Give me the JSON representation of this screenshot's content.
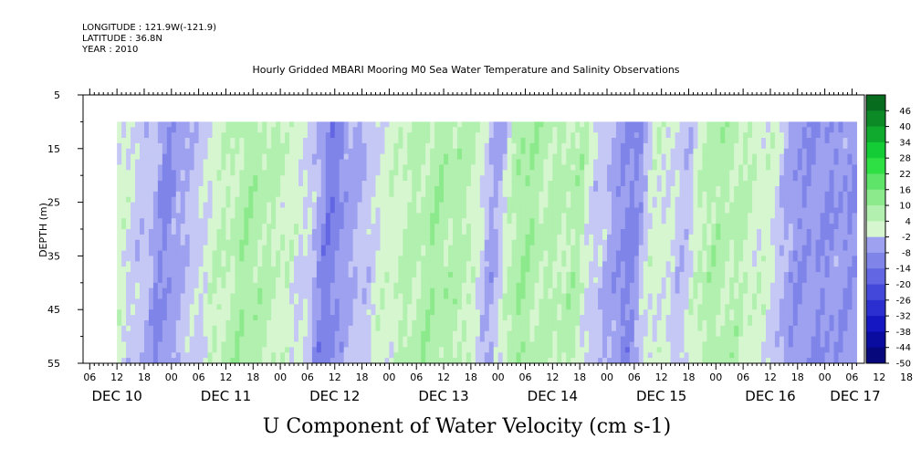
{
  "header": {
    "longitude": "LONGITUDE : 121.9W(-121.9)",
    "latitude": "LATITUDE : 36.8N",
    "year": "YEAR : 2010"
  },
  "chart_data": {
    "type": "heatmap",
    "title": "Hourly Gridded MBARI Mooring M0 Sea Water Temperature and Salinity Observations",
    "xlabel": "",
    "ylabel": "DEPTH (m)",
    "caption": "U Component of Water Velocity (cm s-1)",
    "y_ticks": [
      5,
      15,
      25,
      35,
      45,
      55
    ],
    "ylim": [
      55,
      5
    ],
    "y_axis_inverted": true,
    "data_depth_range_m": [
      10,
      55
    ],
    "hour_ticks": [
      "06",
      "12",
      "18",
      "00",
      "06",
      "12",
      "18",
      "00",
      "06",
      "12",
      "18",
      "00",
      "06",
      "12",
      "18",
      "00",
      "06",
      "12",
      "18",
      "00",
      "06",
      "12",
      "18",
      "00",
      "06",
      "12",
      "18",
      "00",
      "06",
      "12",
      "18",
      "00",
      "06"
    ],
    "date_labels": [
      "DEC 10",
      "DEC 11",
      "DEC 12",
      "DEC 13",
      "DEC 14",
      "DEC 15",
      "DEC 16",
      "DEC 17"
    ],
    "x_range": [
      "DEC 10 00:00",
      "DEC 17 08:00"
    ],
    "data_time_range": [
      "DEC 10 12:00",
      "DEC 17 07:00"
    ],
    "colorbar": {
      "labels": [
        "46",
        "40",
        "34",
        "28",
        "22",
        "16",
        "10",
        "4",
        "-2",
        "-8",
        "-14",
        "-20",
        "-26",
        "-32",
        "-38",
        "-44",
        "-50"
      ],
      "min": -50,
      "max": 52,
      "step": 6
    },
    "profile_hours": [
      0,
      6,
      12,
      18,
      24,
      30,
      36,
      42,
      48,
      54,
      60,
      66,
      72,
      78,
      84,
      90,
      96,
      102,
      108,
      114,
      120,
      126,
      132,
      138,
      144,
      150,
      156,
      163
    ],
    "profile_values": [
      -3,
      6,
      5,
      -1,
      -11,
      -2,
      6,
      11,
      7,
      2,
      -14,
      -5,
      3,
      8,
      11,
      9,
      -6,
      12,
      8,
      9,
      -3,
      -13,
      4,
      -2,
      10,
      8,
      4,
      -10
    ],
    "colors": {
      "negative": [
        "#c5c8f4",
        "#9da1ef",
        "#7f84e8",
        "#6266e3",
        "#4448da",
        "#2b2fd0",
        "#1518c2",
        "#0a0ca0",
        "#06087c",
        "#030555"
      ],
      "positive": [
        "#d6f6d0",
        "#b1f0ae",
        "#8cea8c",
        "#5fe46a",
        "#2fe045",
        "#14cc35",
        "#10aa2e",
        "#0c8a26",
        "#086c1e",
        "#054f16"
      ]
    }
  }
}
